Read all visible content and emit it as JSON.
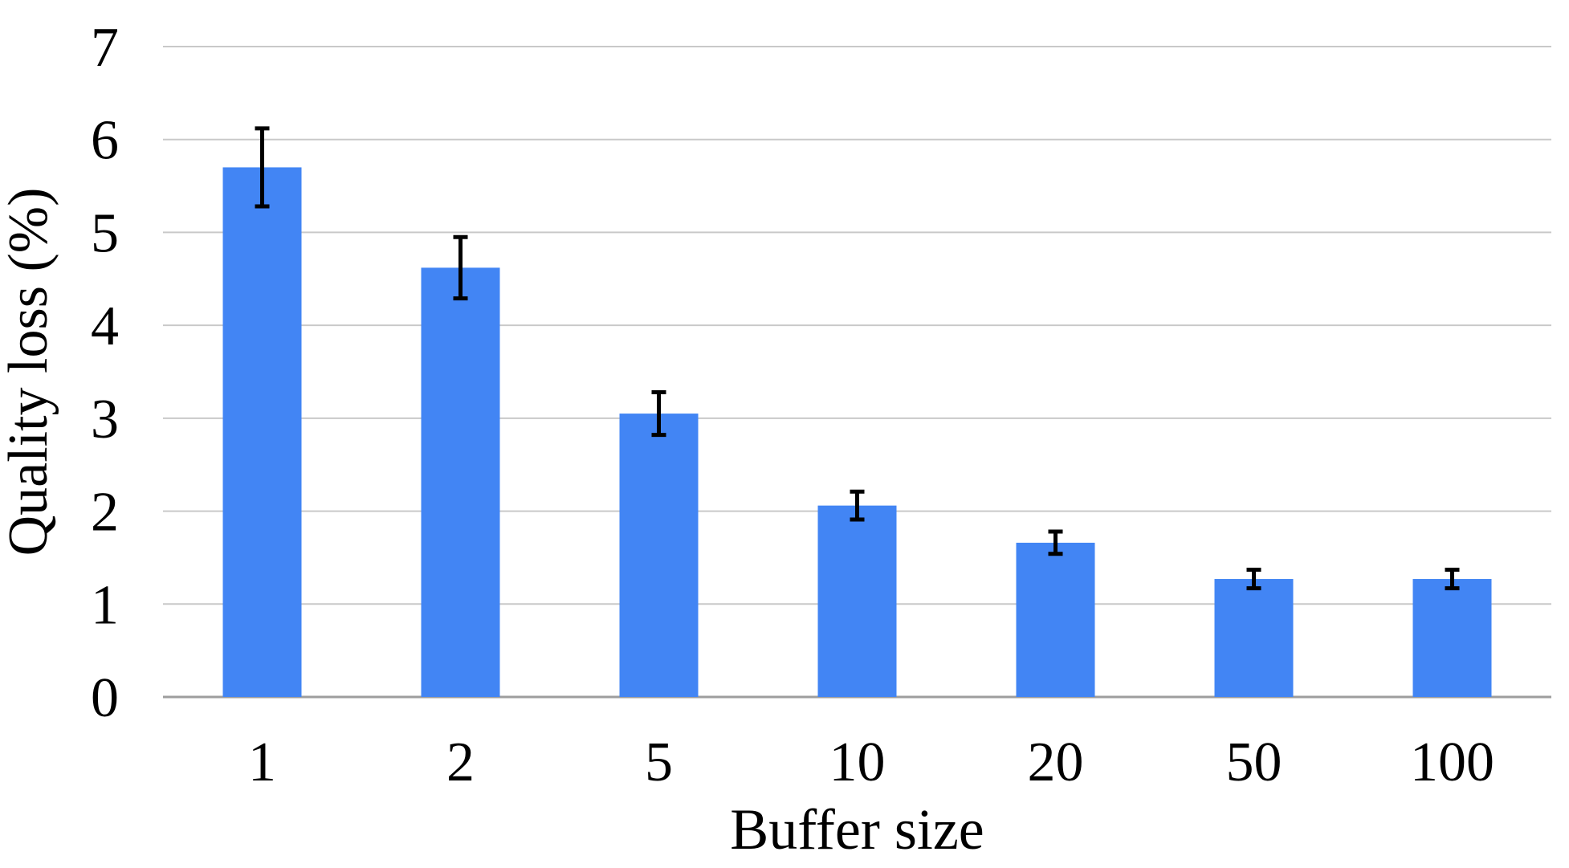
{
  "chart_data": {
    "type": "bar",
    "categories": [
      "1",
      "2",
      "5",
      "10",
      "20",
      "50",
      "100"
    ],
    "values": [
      5.7,
      4.62,
      3.05,
      2.06,
      1.66,
      1.27,
      1.27
    ],
    "errors": [
      0.42,
      0.33,
      0.23,
      0.15,
      0.12,
      0.1,
      0.1
    ],
    "title": "",
    "xlabel": "Buffer size",
    "ylabel": "Quality loss (%)",
    "ylim": [
      0,
      7
    ],
    "yticks": [
      0,
      1,
      2,
      3,
      4,
      5,
      6,
      7
    ],
    "grid": true,
    "legend": "none",
    "colors": {
      "bar": "#4285F4",
      "error_bar": "#000000",
      "gridline": "#c9c9c9",
      "axis_line": "#9e9e9e",
      "text": "#000000"
    }
  }
}
